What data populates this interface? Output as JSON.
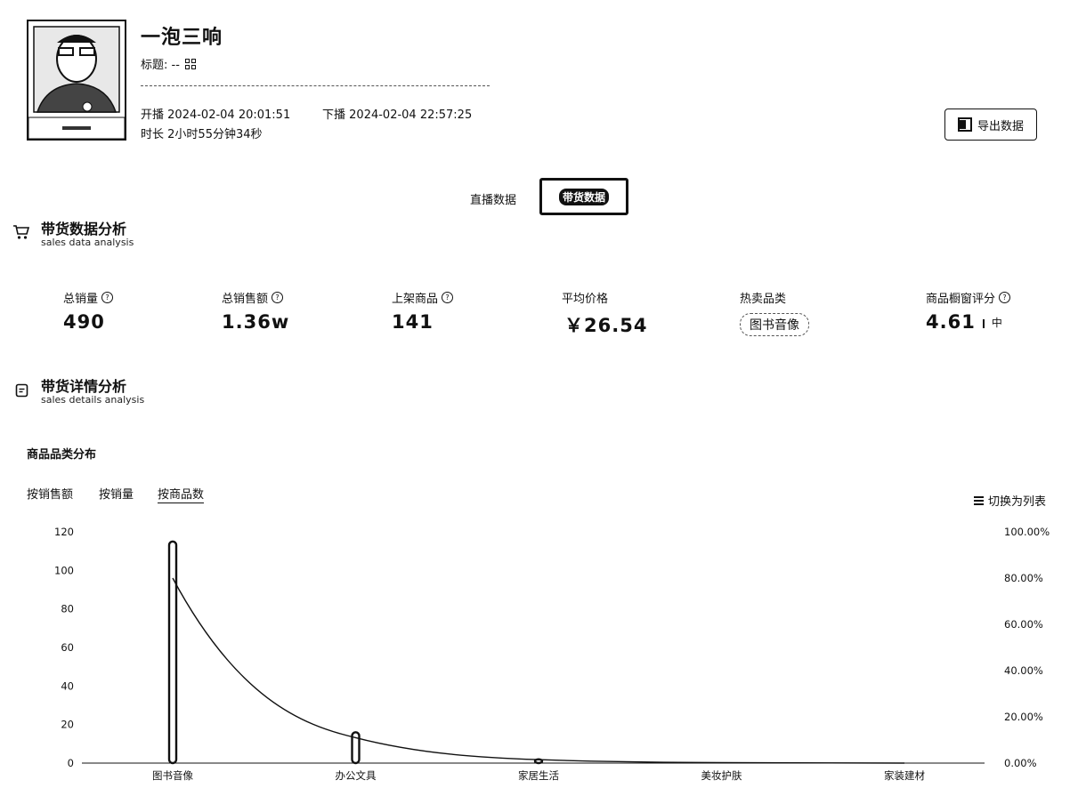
{
  "header": {
    "anchor_name": "一泡三响",
    "title_label": "标题: --",
    "start_label": "开播",
    "start_time": "2024-02-04 20:01:51",
    "end_label": "下播",
    "end_time": "2024-02-04 22:57:25",
    "duration_label": "时长",
    "duration": "2小时55分钟34秒",
    "export_label": "导出数据"
  },
  "tabs": [
    {
      "label": "直播数据",
      "active": false
    },
    {
      "label": "带货数据",
      "active": true
    }
  ],
  "sales_section": {
    "title": "带货数据分析",
    "subtitle": "sales data analysis",
    "icon": "cart-icon"
  },
  "stats": [
    {
      "label": "总销量",
      "value": "490",
      "help": true
    },
    {
      "label": "总销售额",
      "value": "1.36w",
      "help": true
    },
    {
      "label": "上架商品",
      "value": "141",
      "help": true
    },
    {
      "label": "平均价格",
      "value": "￥26.54",
      "help": false
    },
    {
      "label": "热卖品类",
      "value": "图书音像",
      "help": false
    },
    {
      "label": "商品橱窗评分",
      "value": "4.61",
      "level": "中",
      "help": true
    }
  ],
  "details_section": {
    "title": "带货详情分析",
    "subtitle": "sales details analysis",
    "icon": "document-icon"
  },
  "chart_panel": {
    "title": "商品品类分布",
    "subtabs": [
      {
        "label": "按销售额",
        "active": false
      },
      {
        "label": "按销量",
        "active": false
      },
      {
        "label": "按商品数",
        "active": true
      }
    ],
    "switch_label": "切换为列表"
  },
  "chart_data": {
    "type": "bar",
    "categories": [
      "图书音像",
      "办公文具",
      "家居生活",
      "美妆护肤",
      "家装建材"
    ],
    "series": [
      {
        "type": "bar",
        "values": [
          115,
          16,
          2,
          0,
          0
        ]
      },
      {
        "type": "line",
        "axis": "right",
        "values": [
          80.0,
          11.0,
          1.5,
          0.2,
          0.0
        ]
      }
    ],
    "ylim": [
      0,
      120
    ],
    "yticks": [
      "0",
      "20",
      "40",
      "60",
      "80",
      "100",
      "120"
    ],
    "y2lim": [
      0,
      100
    ],
    "y2ticks": [
      "0.00%",
      "20.00%",
      "40.00%",
      "60.00%",
      "80.00%",
      "100.00%"
    ]
  }
}
